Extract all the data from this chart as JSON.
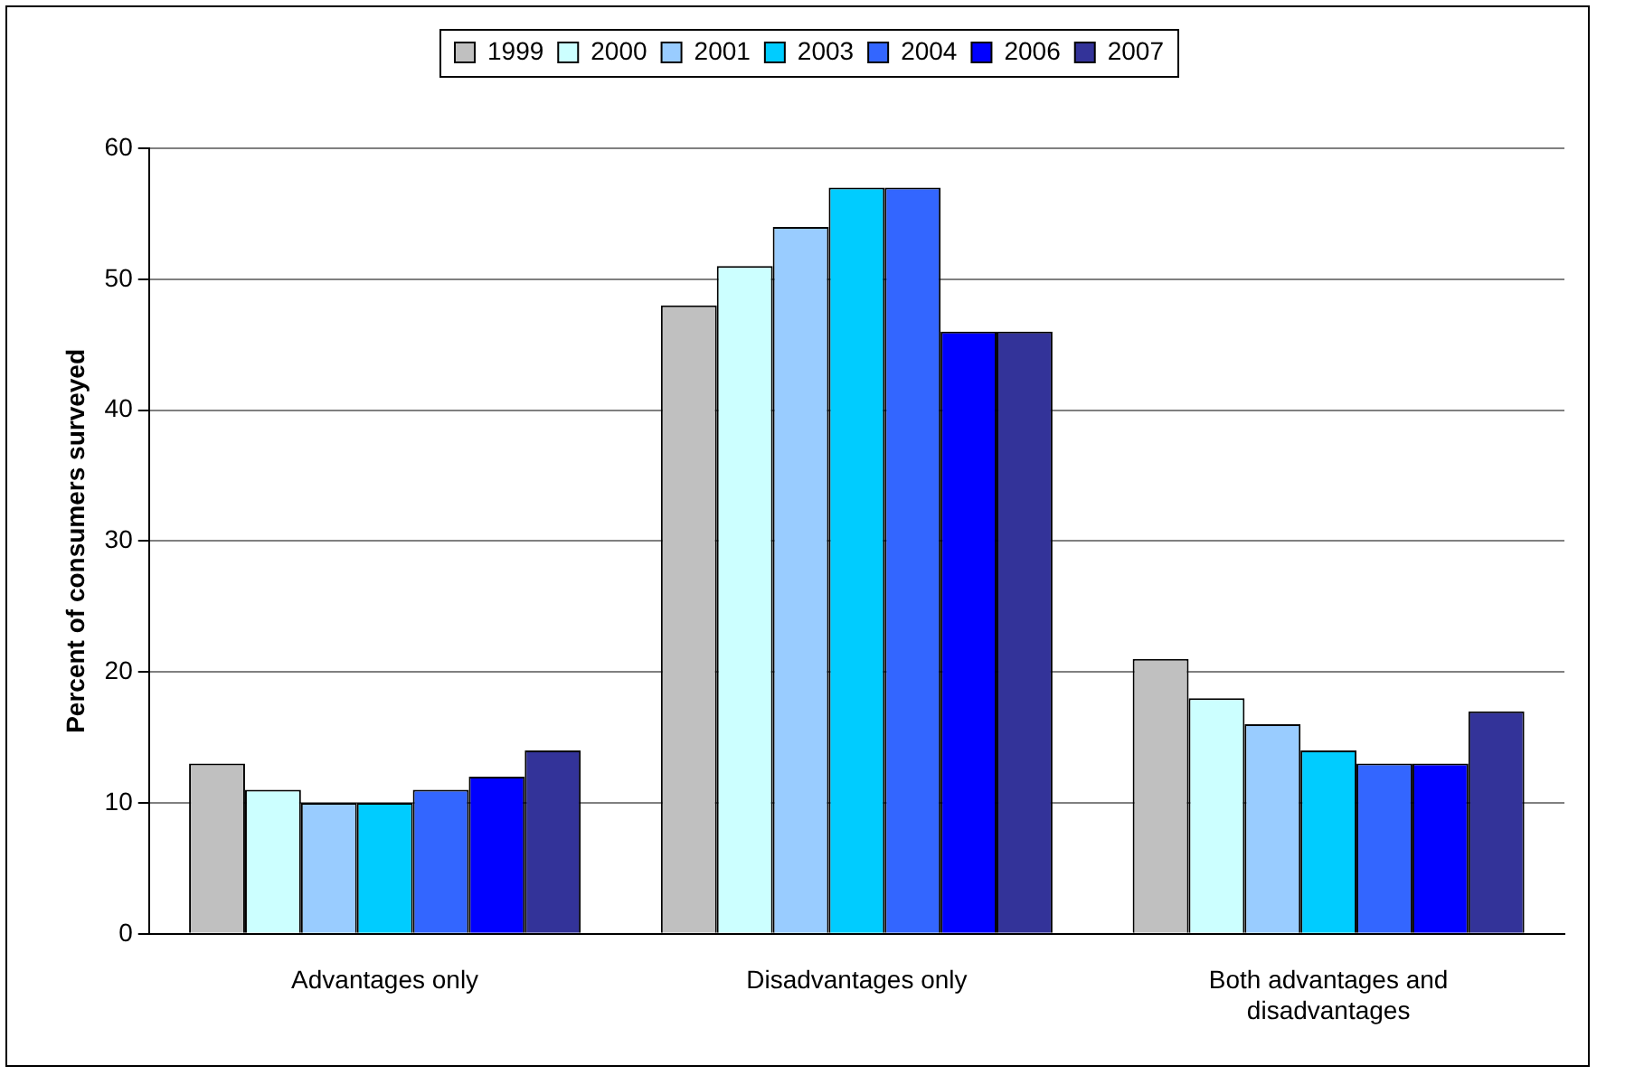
{
  "chart_data": {
    "type": "bar",
    "ylabel": "Percent of consumers surveyed",
    "categories": [
      "Advantages only",
      "Disadvantages only",
      "Both advantages and disadvantages"
    ],
    "series": [
      {
        "name": "1999",
        "color": "#c0c0c0",
        "values": [
          13,
          48,
          21
        ]
      },
      {
        "name": "2000",
        "color": "#ccffff",
        "values": [
          11,
          51,
          18
        ]
      },
      {
        "name": "2001",
        "color": "#99ccff",
        "values": [
          10,
          54,
          16
        ]
      },
      {
        "name": "2003",
        "color": "#00ccff",
        "values": [
          10,
          57,
          14
        ]
      },
      {
        "name": "2004",
        "color": "#3366ff",
        "values": [
          11,
          57,
          13
        ]
      },
      {
        "name": "2006",
        "color": "#0000ff",
        "values": [
          12,
          46,
          13
        ]
      },
      {
        "name": "2007",
        "color": "#333399",
        "values": [
          14,
          46,
          17
        ]
      }
    ],
    "ylim": [
      0,
      60
    ],
    "yticks": [
      0,
      10,
      20,
      30,
      40,
      50,
      60
    ],
    "grid": "y",
    "legend": "top"
  }
}
